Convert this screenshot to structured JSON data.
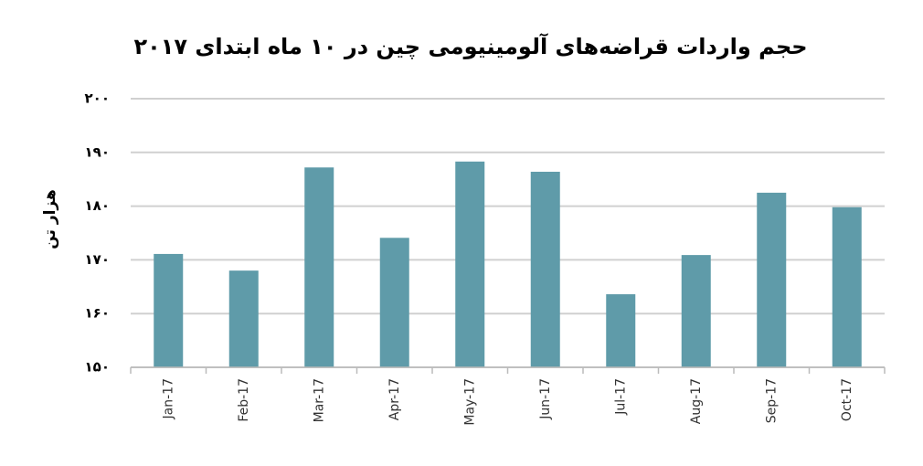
{
  "chart_data": {
    "type": "bar",
    "title": "حجم واردات قراضه‌های آلومینیومی چین در ۱۰ ماه ابتدای ۲۰۱۷",
    "y_label": "هزار تن",
    "categories": [
      "Jan-17",
      "Feb-17",
      "Mar-17",
      "Apr-17",
      "May-17",
      "Jun-17",
      "Jul-17",
      "Aug-17",
      "Sep-17",
      "Oct-17"
    ],
    "values": [
      171.1,
      168.0,
      187.2,
      174.1,
      188.3,
      186.4,
      163.6,
      170.9,
      182.5,
      179.8
    ],
    "color": "#5f9ba9",
    "ylim": [
      150,
      200
    ],
    "yticks": [
      {
        "value": 150,
        "label": "۱۵۰"
      },
      {
        "value": 160,
        "label": "۱۶۰"
      },
      {
        "value": 170,
        "label": "۱۷۰"
      },
      {
        "value": 180,
        "label": "۱۸۰"
      },
      {
        "value": 190,
        "label": "۱۹۰"
      },
      {
        "value": 200,
        "label": "۲۰۰"
      }
    ],
    "grid": true
  }
}
